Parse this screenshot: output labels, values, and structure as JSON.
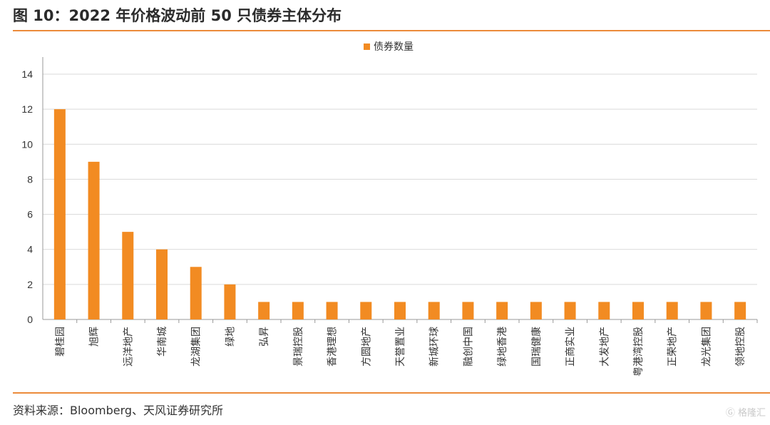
{
  "figure": {
    "title": "图 10：2022 年价格波动前 50 只债券主体分布",
    "source": "资料来源：Bloomberg、天风证券研究所",
    "watermark": "格隆汇"
  },
  "colors": {
    "accent": "#ec8b3a",
    "bar": "#f28b22"
  },
  "chart_data": {
    "type": "bar",
    "categories": [
      "碧桂园",
      "旭辉",
      "远洋地产",
      "华南城",
      "龙湖集团",
      "绿地",
      "弘昇",
      "景瑞控股",
      "香港理想",
      "方圆地产",
      "天誉置业",
      "新城环球",
      "融创中国",
      "绿地香港",
      "国瑞健康",
      "正商实业",
      "大发地产",
      "粤港湾控股",
      "正荣地产",
      "龙光集团",
      "领地控股"
    ],
    "series": [
      {
        "name": "债券数量",
        "values": [
          12,
          9,
          5,
          4,
          3,
          2,
          1,
          1,
          1,
          1,
          1,
          1,
          1,
          1,
          1,
          1,
          1,
          1,
          1,
          1,
          1
        ]
      }
    ],
    "xlabel": "",
    "ylabel": "",
    "ylim": [
      0,
      14
    ],
    "yticks": [
      0,
      2,
      4,
      6,
      8,
      10,
      12,
      14
    ],
    "grid": true,
    "legend": "top-center"
  }
}
